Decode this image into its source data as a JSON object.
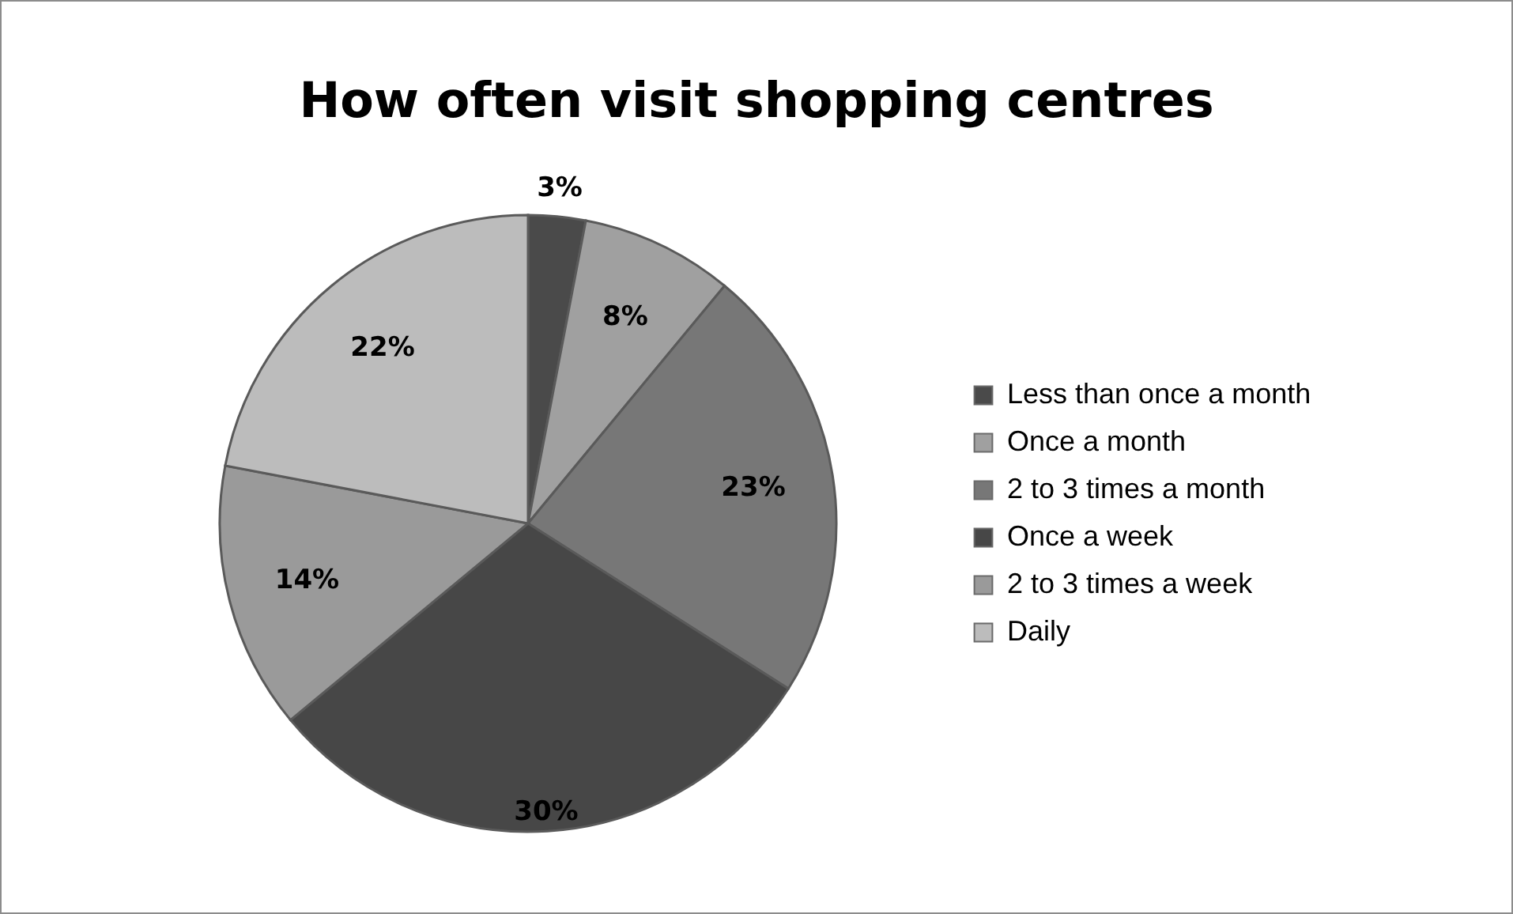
{
  "chart_data": {
    "type": "pie",
    "title": "How often visit shopping centres",
    "categories": [
      "Less than once a month",
      "Once a month",
      "2 to 3 times a month",
      "Once a week",
      "2 to 3 times a week",
      "Daily"
    ],
    "values": [
      3,
      8,
      23,
      30,
      14,
      22
    ],
    "colors": [
      "#4a4a4a",
      "#a0a0a0",
      "#777777",
      "#474747",
      "#9a9a9a",
      "#bcbcbc"
    ],
    "value_labels": [
      "3%",
      "8%",
      "23%",
      "30%",
      "14%",
      "22%"
    ],
    "legend": "right"
  }
}
